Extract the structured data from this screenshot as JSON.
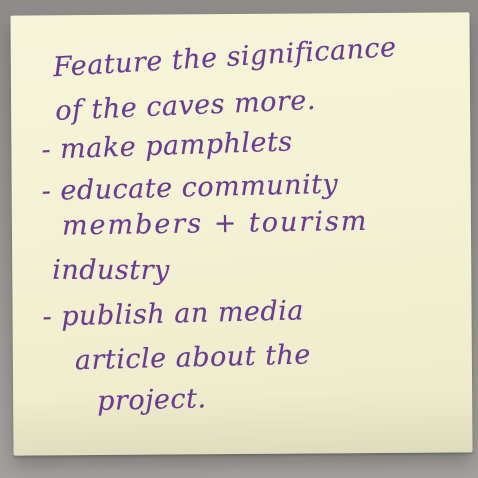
{
  "note": {
    "lines": [
      "Feature the significance",
      "of the caves more.",
      "- make pamphlets",
      "- educate community",
      "members + tourism",
      "industry",
      "- publish an media",
      "article about the",
      "project."
    ],
    "ink_color": "#6a3d93",
    "paper_color": "#f4f2d4"
  }
}
